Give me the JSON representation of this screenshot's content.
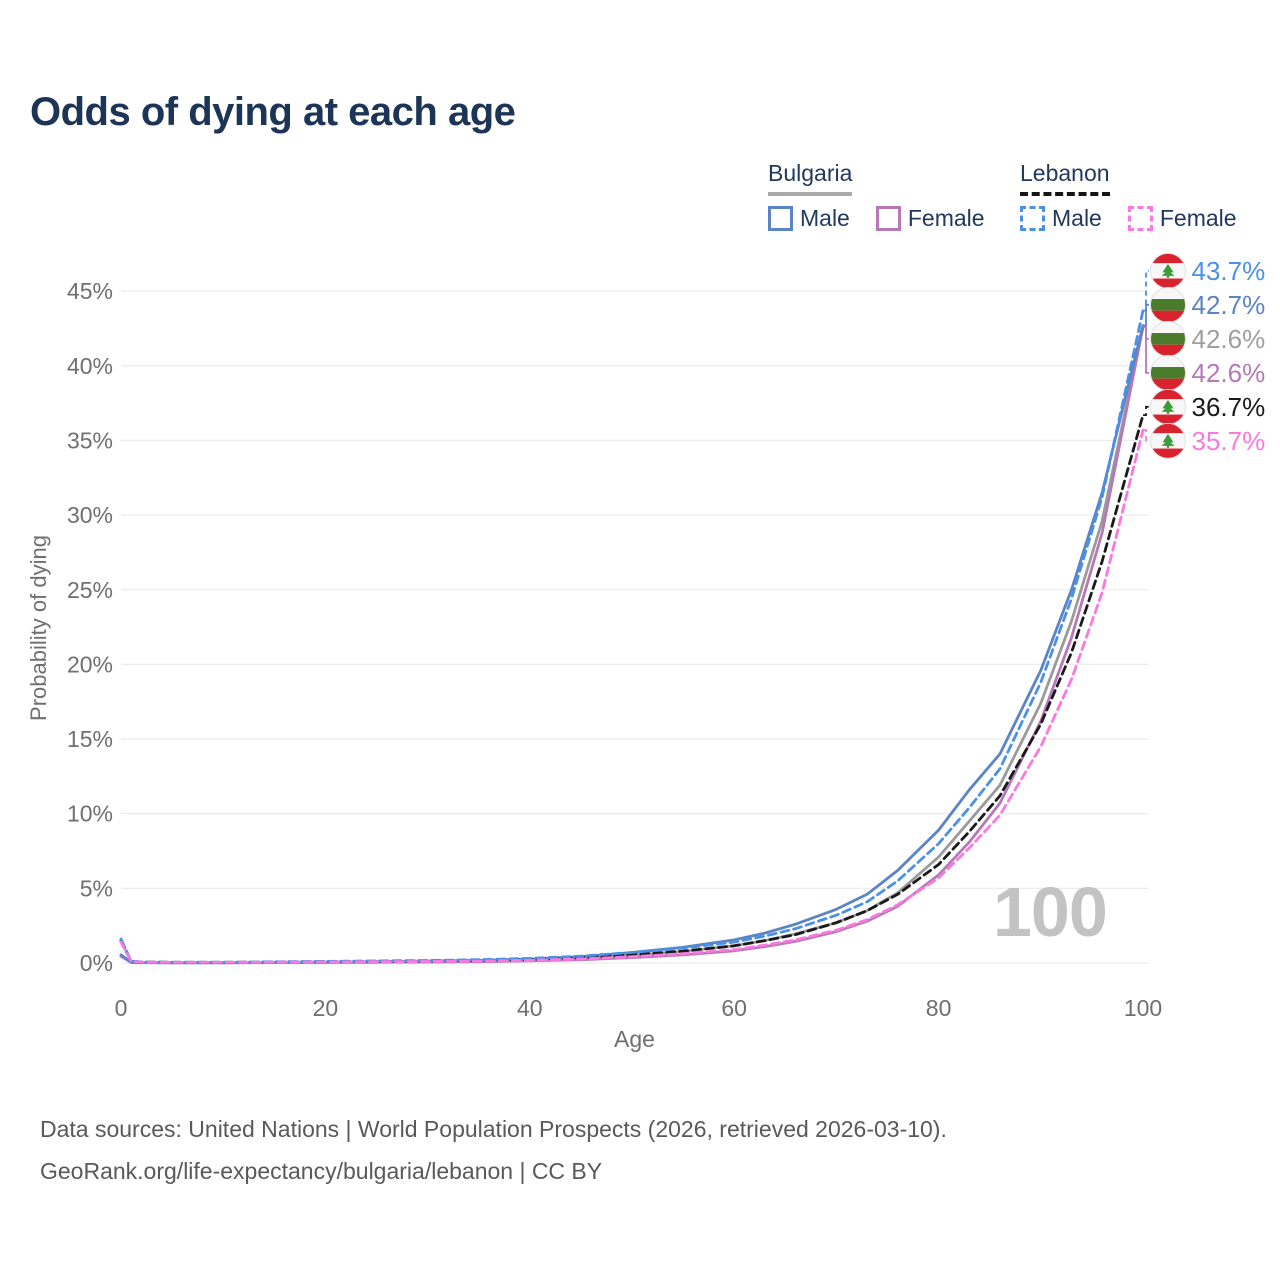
{
  "title": "Odds of dying at each age",
  "legend": {
    "position": "top-right",
    "groups": [
      {
        "label": "Bulgaria",
        "line_style": "solid",
        "underline_color": "#a9a9a9",
        "items": [
          {
            "label": "Male",
            "color": "#5b84c4",
            "dashed": false
          },
          {
            "label": "Female",
            "color": "#b678b8",
            "dashed": false
          }
        ]
      },
      {
        "label": "Lebanon",
        "line_style": "dashed",
        "underline_color": "#151515",
        "items": [
          {
            "label": "Male",
            "color": "#4a90e8",
            "dashed": true
          },
          {
            "label": "Female",
            "color": "#fb78e0",
            "dashed": true
          }
        ]
      }
    ]
  },
  "chart_data": {
    "type": "line",
    "title": "Odds of dying at each age",
    "xlabel": "Age",
    "ylabel": "Probability of dying",
    "x_ticks": [
      0,
      20,
      40,
      60,
      80,
      100
    ],
    "y_ticks": [
      0,
      5,
      10,
      15,
      20,
      25,
      30,
      35,
      40,
      45
    ],
    "y_tick_suffix": "%",
    "xlim": [
      0,
      100
    ],
    "ylim": [
      0,
      45
    ],
    "grid": "horizontal-only",
    "gridline_color": "#ececec",
    "axis_text_color": "#6f6f6f",
    "watermark": "100",
    "ages": [
      0,
      1,
      2,
      5,
      10,
      15,
      20,
      25,
      30,
      35,
      40,
      45,
      50,
      55,
      60,
      63,
      66,
      70,
      73,
      76,
      80,
      83,
      86,
      90,
      93,
      96,
      100
    ],
    "series": [
      {
        "name": "Bulgaria Both sexes",
        "country": "bulgaria",
        "sex": "both",
        "color": "#9a9a9a",
        "label_color": "#9e9e9e",
        "dashed": false,
        "end_label": "42.6%",
        "values": [
          0.5,
          0.045,
          0.027,
          0.02,
          0.02,
          0.03,
          0.045,
          0.065,
          0.09,
          0.13,
          0.2,
          0.32,
          0.52,
          0.78,
          1.15,
          1.5,
          1.95,
          2.7,
          3.5,
          4.7,
          7.1,
          9.5,
          11.9,
          17.4,
          22.9,
          29.6,
          42.6
        ]
      },
      {
        "name": "Bulgaria Female",
        "country": "bulgaria",
        "sex": "female",
        "color": "#b678b8",
        "label_color": "#b678b8",
        "dashed": false,
        "end_label": "42.6%",
        "values": [
          0.45,
          0.04,
          0.024,
          0.015,
          0.015,
          0.025,
          0.035,
          0.045,
          0.06,
          0.09,
          0.14,
          0.22,
          0.36,
          0.55,
          0.82,
          1.1,
          1.45,
          2.1,
          2.8,
          3.8,
          5.9,
          8.1,
          10.7,
          16.2,
          21.8,
          28.8,
          42.6
        ]
      },
      {
        "name": "Bulgaria Male",
        "country": "bulgaria",
        "sex": "male",
        "color": "#5b84c4",
        "label_color": "#5b84c4",
        "dashed": false,
        "end_label": "42.7%",
        "values": [
          0.55,
          0.05,
          0.03,
          0.02,
          0.02,
          0.04,
          0.06,
          0.09,
          0.12,
          0.17,
          0.26,
          0.42,
          0.7,
          1.05,
          1.55,
          2.0,
          2.6,
          3.6,
          4.6,
          6.2,
          8.9,
          11.6,
          14.0,
          19.6,
          25.0,
          31.5,
          42.7
        ]
      },
      {
        "name": "Lebanon Both sexes",
        "country": "lebanon",
        "sex": "both",
        "color": "#1a1a1a",
        "label_color": "#1a1a1a",
        "dashed": true,
        "end_label": "36.7%",
        "values": [
          1.5,
          0.11,
          0.065,
          0.045,
          0.045,
          0.065,
          0.09,
          0.11,
          0.13,
          0.17,
          0.24,
          0.36,
          0.55,
          0.8,
          1.15,
          1.5,
          1.9,
          2.7,
          3.5,
          4.6,
          6.6,
          8.8,
          11.2,
          16.0,
          20.8,
          26.9,
          36.7
        ]
      },
      {
        "name": "Lebanon Male",
        "country": "lebanon",
        "sex": "male",
        "color": "#4a90e8",
        "label_color": "#4a90e8",
        "dashed": true,
        "end_label": "43.7%",
        "values": [
          1.6,
          0.12,
          0.07,
          0.05,
          0.05,
          0.08,
          0.11,
          0.14,
          0.17,
          0.22,
          0.31,
          0.46,
          0.7,
          1.0,
          1.4,
          1.8,
          2.3,
          3.2,
          4.1,
          5.5,
          8.0,
          10.4,
          13.0,
          18.8,
          24.4,
          31.2,
          43.7
        ]
      },
      {
        "name": "Lebanon Female",
        "country": "lebanon",
        "sex": "female",
        "color": "#fb78e0",
        "label_color": "#fb78e0",
        "dashed": true,
        "end_label": "35.7%",
        "values": [
          1.4,
          0.1,
          0.06,
          0.04,
          0.04,
          0.055,
          0.07,
          0.085,
          0.1,
          0.13,
          0.18,
          0.27,
          0.42,
          0.62,
          0.9,
          1.2,
          1.55,
          2.2,
          2.9,
          3.9,
          5.7,
          7.7,
          9.9,
          14.5,
          19.0,
          24.8,
          35.7
        ]
      }
    ],
    "flag_colors": {
      "red": "#d8232e",
      "bulgaria_green": "#4a7c2b",
      "cedar_green": "#3a9d3a",
      "white": "#f7f7f7"
    }
  },
  "footer": {
    "line1": "Data sources: United Nations | World Population Prospects (2026, retrieved 2026-03-10).",
    "line2": "GeoRank.org/life-expectancy/bulgaria/lebanon | CC BY"
  }
}
